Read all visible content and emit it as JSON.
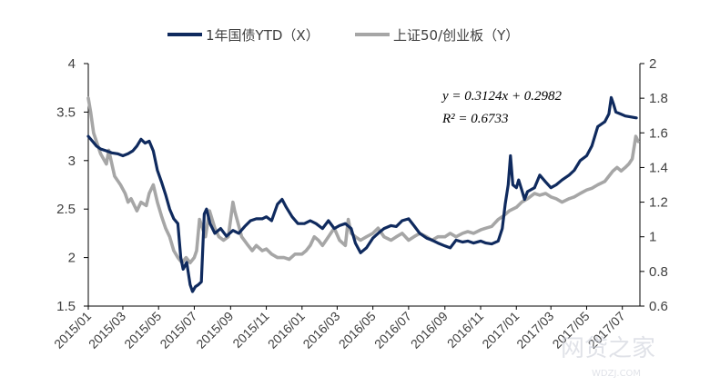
{
  "chart_data": {
    "type": "line",
    "x_type": "date",
    "x_range": [
      "2015-01-01",
      "2017-07-31"
    ],
    "x_tick_labels": [
      "2015/01",
      "2015/03",
      "2015/05",
      "2015/07",
      "2015/09",
      "2015/11",
      "2016/01",
      "2016/03",
      "2016/05",
      "2016/07",
      "2016/09",
      "2016/11",
      "2017/01",
      "2017/03",
      "2017/05",
      "2017/07"
    ],
    "y_left": {
      "ticks": [
        4,
        3.5,
        3,
        2.5,
        2,
        1.5
      ],
      "tick_labels": [
        "4",
        "3.5",
        "3",
        "2.5",
        "2",
        "1.5"
      ],
      "lim": [
        1.5,
        4
      ]
    },
    "y_right": {
      "ticks": [
        2,
        1.8,
        1.6,
        1.4,
        1.2,
        1,
        0.8,
        0.6
      ],
      "tick_labels": [
        "2",
        "1.8",
        "1.6",
        "1.4",
        "1.2",
        "1",
        "0.8",
        "0.6"
      ],
      "lim": [
        0.6,
        2
      ]
    },
    "legend": {
      "position": "top-center"
    },
    "grid": false,
    "annotations": [
      "y = 0.3124x + 0.2982",
      "R² = 0.6733"
    ],
    "series": [
      {
        "name": "1年国债YTD（X）",
        "axis": "left",
        "color": "#0f2a5e",
        "points": [
          [
            "2015-01-01",
            3.25
          ],
          [
            "2015-01-08",
            3.2
          ],
          [
            "2015-01-15",
            3.15
          ],
          [
            "2015-01-22",
            3.12
          ],
          [
            "2015-02-01",
            3.1
          ],
          [
            "2015-02-10",
            3.08
          ],
          [
            "2015-02-20",
            3.07
          ],
          [
            "2015-03-01",
            3.05
          ],
          [
            "2015-03-10",
            3.07
          ],
          [
            "2015-03-18",
            3.1
          ],
          [
            "2015-03-25",
            3.15
          ],
          [
            "2015-04-01",
            3.22
          ],
          [
            "2015-04-08",
            3.18
          ],
          [
            "2015-04-15",
            3.2
          ],
          [
            "2015-04-22",
            3.1
          ],
          [
            "2015-04-29",
            2.9
          ],
          [
            "2015-05-06",
            2.78
          ],
          [
            "2015-05-13",
            2.65
          ],
          [
            "2015-05-20",
            2.5
          ],
          [
            "2015-05-27",
            2.4
          ],
          [
            "2015-06-03",
            2.35
          ],
          [
            "2015-06-08",
            2.0
          ],
          [
            "2015-06-12",
            1.88
          ],
          [
            "2015-06-18",
            1.95
          ],
          [
            "2015-06-24",
            1.72
          ],
          [
            "2015-06-28",
            1.65
          ],
          [
            "2015-07-03",
            1.7
          ],
          [
            "2015-07-08",
            1.72
          ],
          [
            "2015-07-13",
            1.75
          ],
          [
            "2015-07-18",
            2.45
          ],
          [
            "2015-07-22",
            2.5
          ],
          [
            "2015-07-28",
            2.35
          ],
          [
            "2015-08-05",
            2.25
          ],
          [
            "2015-08-15",
            2.3
          ],
          [
            "2015-08-25",
            2.22
          ],
          [
            "2015-09-05",
            2.28
          ],
          [
            "2015-09-15",
            2.25
          ],
          [
            "2015-09-25",
            2.32
          ],
          [
            "2015-10-05",
            2.38
          ],
          [
            "2015-10-15",
            2.4
          ],
          [
            "2015-10-25",
            2.4
          ],
          [
            "2015-11-01",
            2.42
          ],
          [
            "2015-11-10",
            2.38
          ],
          [
            "2015-11-20",
            2.55
          ],
          [
            "2015-11-28",
            2.6
          ],
          [
            "2015-12-05",
            2.52
          ],
          [
            "2015-12-15",
            2.42
          ],
          [
            "2015-12-25",
            2.35
          ],
          [
            "2016-01-05",
            2.35
          ],
          [
            "2016-01-15",
            2.38
          ],
          [
            "2016-01-25",
            2.35
          ],
          [
            "2016-02-05",
            2.3
          ],
          [
            "2016-02-15",
            2.38
          ],
          [
            "2016-02-25",
            2.3
          ],
          [
            "2016-03-05",
            2.33
          ],
          [
            "2016-03-15",
            2.35
          ],
          [
            "2016-03-25",
            2.3
          ],
          [
            "2016-04-01",
            2.15
          ],
          [
            "2016-04-10",
            2.05
          ],
          [
            "2016-04-20",
            2.1
          ],
          [
            "2016-05-01",
            2.2
          ],
          [
            "2016-05-10",
            2.25
          ],
          [
            "2016-05-20",
            2.3
          ],
          [
            "2016-06-01",
            2.33
          ],
          [
            "2016-06-10",
            2.32
          ],
          [
            "2016-06-20",
            2.38
          ],
          [
            "2016-07-01",
            2.4
          ],
          [
            "2016-07-10",
            2.33
          ],
          [
            "2016-07-20",
            2.25
          ],
          [
            "2016-08-01",
            2.2
          ],
          [
            "2016-08-10",
            2.18
          ],
          [
            "2016-08-20",
            2.15
          ],
          [
            "2016-09-01",
            2.12
          ],
          [
            "2016-09-10",
            2.1
          ],
          [
            "2016-09-20",
            2.18
          ],
          [
            "2016-10-01",
            2.16
          ],
          [
            "2016-10-10",
            2.17
          ],
          [
            "2016-10-20",
            2.15
          ],
          [
            "2016-11-01",
            2.17
          ],
          [
            "2016-11-10",
            2.15
          ],
          [
            "2016-11-20",
            2.14
          ],
          [
            "2016-12-01",
            2.17
          ],
          [
            "2016-12-08",
            2.3
          ],
          [
            "2016-12-13",
            2.55
          ],
          [
            "2016-12-18",
            2.75
          ],
          [
            "2016-12-22",
            3.05
          ],
          [
            "2016-12-26",
            2.75
          ],
          [
            "2017-01-01",
            2.72
          ],
          [
            "2017-01-05",
            2.8
          ],
          [
            "2017-01-10",
            2.7
          ],
          [
            "2017-01-15",
            2.6
          ],
          [
            "2017-01-20",
            2.68
          ],
          [
            "2017-02-01",
            2.72
          ],
          [
            "2017-02-10",
            2.85
          ],
          [
            "2017-02-20",
            2.78
          ],
          [
            "2017-03-01",
            2.72
          ],
          [
            "2017-03-10",
            2.75
          ],
          [
            "2017-03-20",
            2.8
          ],
          [
            "2017-04-01",
            2.85
          ],
          [
            "2017-04-10",
            2.9
          ],
          [
            "2017-04-20",
            3.0
          ],
          [
            "2017-05-01",
            3.05
          ],
          [
            "2017-05-10",
            3.15
          ],
          [
            "2017-05-20",
            3.35
          ],
          [
            "2017-06-01",
            3.4
          ],
          [
            "2017-06-08",
            3.48
          ],
          [
            "2017-06-12",
            3.65
          ],
          [
            "2017-06-16",
            3.58
          ],
          [
            "2017-06-20",
            3.5
          ],
          [
            "2017-06-28",
            3.48
          ],
          [
            "2017-07-06",
            3.46
          ],
          [
            "2017-07-15",
            3.45
          ],
          [
            "2017-07-25",
            3.44
          ]
        ]
      },
      {
        "name": "上证50/创业板（Y）",
        "axis": "right",
        "color": "#a6a6a6",
        "points": [
          [
            "2015-01-01",
            1.8
          ],
          [
            "2015-01-05",
            1.72
          ],
          [
            "2015-01-10",
            1.6
          ],
          [
            "2015-01-15",
            1.55
          ],
          [
            "2015-01-22",
            1.48
          ],
          [
            "2015-02-01",
            1.42
          ],
          [
            "2015-02-05",
            1.5
          ],
          [
            "2015-02-15",
            1.35
          ],
          [
            "2015-02-25",
            1.3
          ],
          [
            "2015-03-05",
            1.25
          ],
          [
            "2015-03-10",
            1.2
          ],
          [
            "2015-03-15",
            1.22
          ],
          [
            "2015-03-25",
            1.15
          ],
          [
            "2015-04-01",
            1.2
          ],
          [
            "2015-04-10",
            1.18
          ],
          [
            "2015-04-15",
            1.25
          ],
          [
            "2015-04-22",
            1.3
          ],
          [
            "2015-04-29",
            1.2
          ],
          [
            "2015-05-06",
            1.12
          ],
          [
            "2015-05-13",
            1.05
          ],
          [
            "2015-05-20",
            1.0
          ],
          [
            "2015-05-27",
            0.92
          ],
          [
            "2015-06-03",
            0.88
          ],
          [
            "2015-06-10",
            0.85
          ],
          [
            "2015-06-17",
            0.88
          ],
          [
            "2015-06-24",
            0.85
          ],
          [
            "2015-07-01",
            0.88
          ],
          [
            "2015-07-05",
            0.92
          ],
          [
            "2015-07-10",
            1.1
          ],
          [
            "2015-07-15",
            1.05
          ],
          [
            "2015-07-20",
            1.0
          ],
          [
            "2015-07-27",
            1.15
          ],
          [
            "2015-08-05",
            1.05
          ],
          [
            "2015-08-12",
            1.0
          ],
          [
            "2015-08-20",
            0.98
          ],
          [
            "2015-08-28",
            1.0
          ],
          [
            "2015-09-05",
            1.2
          ],
          [
            "2015-09-08",
            1.15
          ],
          [
            "2015-09-12",
            1.1
          ],
          [
            "2015-09-20",
            1.0
          ],
          [
            "2015-10-01",
            0.95
          ],
          [
            "2015-10-08",
            0.92
          ],
          [
            "2015-10-15",
            0.95
          ],
          [
            "2015-10-25",
            0.92
          ],
          [
            "2015-11-01",
            0.93
          ],
          [
            "2015-11-10",
            0.9
          ],
          [
            "2015-11-20",
            0.88
          ],
          [
            "2015-12-01",
            0.88
          ],
          [
            "2015-12-10",
            0.87
          ],
          [
            "2015-12-20",
            0.9
          ],
          [
            "2016-01-01",
            0.9
          ],
          [
            "2016-01-08",
            0.92
          ],
          [
            "2016-01-15",
            0.95
          ],
          [
            "2016-01-22",
            1.0
          ],
          [
            "2016-01-29",
            0.98
          ],
          [
            "2016-02-05",
            0.95
          ],
          [
            "2016-02-15",
            1.0
          ],
          [
            "2016-02-25",
            1.05
          ],
          [
            "2016-03-05",
            0.98
          ],
          [
            "2016-03-15",
            0.95
          ],
          [
            "2016-03-20",
            1.1
          ],
          [
            "2016-03-25",
            1.02
          ],
          [
            "2016-04-01",
            1.0
          ],
          [
            "2016-04-10",
            0.98
          ],
          [
            "2016-04-20",
            1.0
          ],
          [
            "2016-05-01",
            1.02
          ],
          [
            "2016-05-10",
            1.05
          ],
          [
            "2016-05-20",
            1.0
          ],
          [
            "2016-06-01",
            0.98
          ],
          [
            "2016-06-10",
            1.0
          ],
          [
            "2016-06-20",
            1.02
          ],
          [
            "2016-07-01",
            0.98
          ],
          [
            "2016-07-10",
            1.0
          ],
          [
            "2016-07-20",
            1.02
          ],
          [
            "2016-08-01",
            1.0
          ],
          [
            "2016-08-10",
            0.98
          ],
          [
            "2016-08-20",
            1.0
          ],
          [
            "2016-09-01",
            1.0
          ],
          [
            "2016-09-10",
            1.02
          ],
          [
            "2016-09-20",
            1.0
          ],
          [
            "2016-10-01",
            1.02
          ],
          [
            "2016-10-10",
            1.03
          ],
          [
            "2016-10-20",
            1.02
          ],
          [
            "2016-11-01",
            1.04
          ],
          [
            "2016-11-10",
            1.05
          ],
          [
            "2016-11-20",
            1.06
          ],
          [
            "2016-12-01",
            1.1
          ],
          [
            "2016-12-10",
            1.12
          ],
          [
            "2016-12-20",
            1.15
          ],
          [
            "2017-01-01",
            1.17
          ],
          [
            "2017-01-10",
            1.2
          ],
          [
            "2017-01-20",
            1.22
          ],
          [
            "2017-02-01",
            1.25
          ],
          [
            "2017-02-10",
            1.24
          ],
          [
            "2017-02-20",
            1.25
          ],
          [
            "2017-03-01",
            1.23
          ],
          [
            "2017-03-10",
            1.22
          ],
          [
            "2017-03-20",
            1.2
          ],
          [
            "2017-04-01",
            1.22
          ],
          [
            "2017-04-10",
            1.23
          ],
          [
            "2017-04-20",
            1.25
          ],
          [
            "2017-05-01",
            1.27
          ],
          [
            "2017-05-10",
            1.28
          ],
          [
            "2017-05-20",
            1.3
          ],
          [
            "2017-06-01",
            1.32
          ],
          [
            "2017-06-08",
            1.35
          ],
          [
            "2017-06-15",
            1.38
          ],
          [
            "2017-06-22",
            1.4
          ],
          [
            "2017-06-29",
            1.38
          ],
          [
            "2017-07-06",
            1.4
          ],
          [
            "2017-07-12",
            1.42
          ],
          [
            "2017-07-18",
            1.45
          ],
          [
            "2017-07-24",
            1.58
          ],
          [
            "2017-07-28",
            1.55
          ]
        ]
      }
    ]
  },
  "watermark": {
    "text": "网贷之家",
    "subtext": "WDZJ.COM"
  }
}
